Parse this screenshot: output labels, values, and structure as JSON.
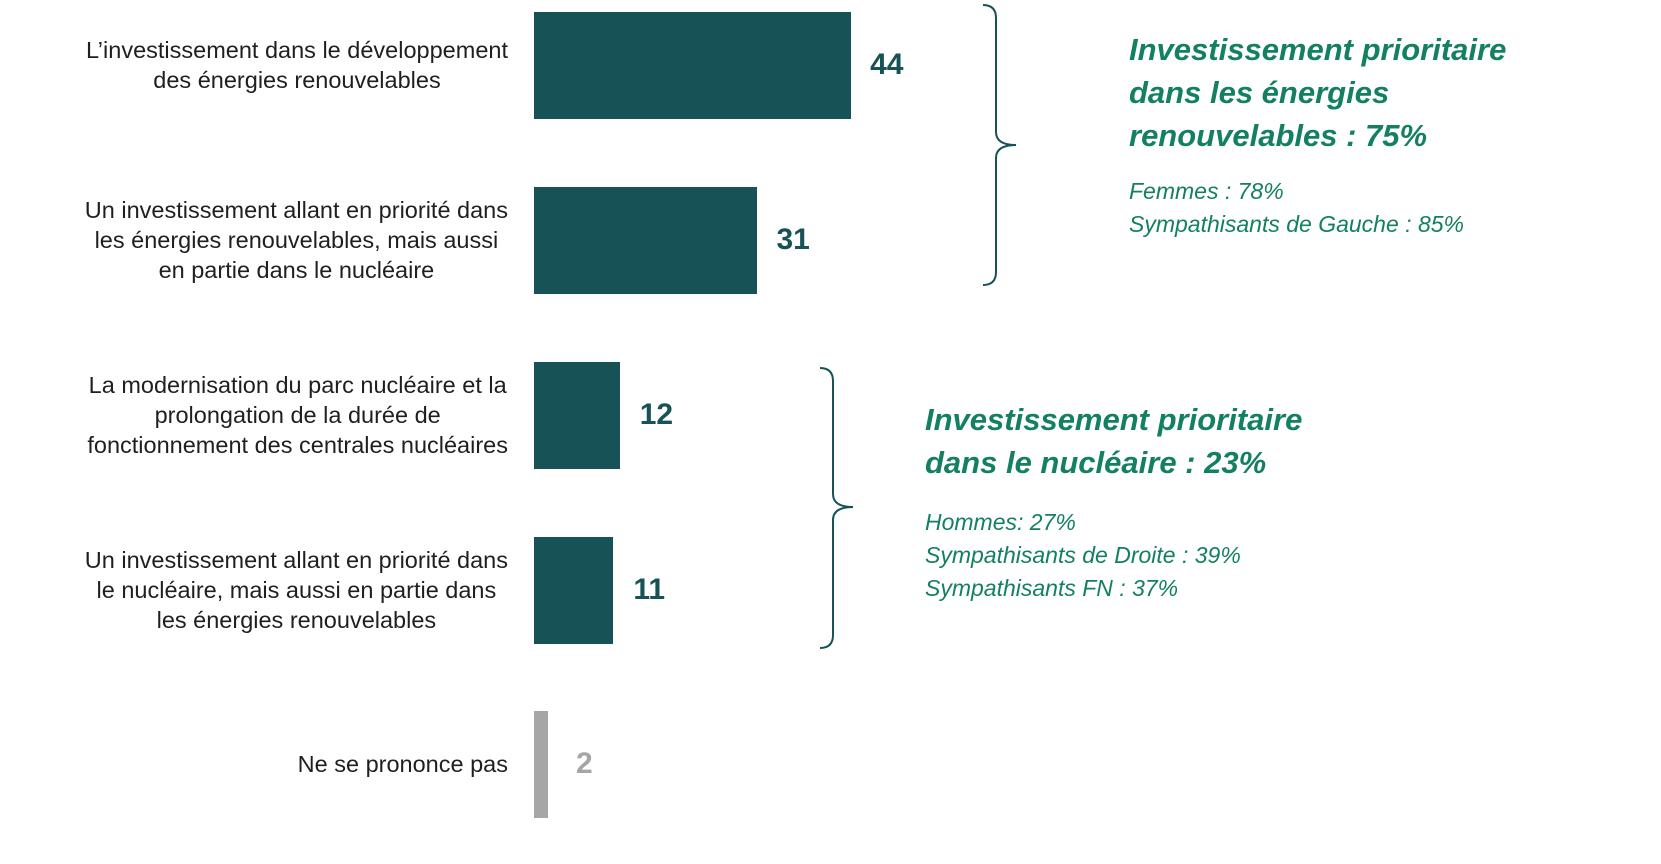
{
  "chart_data": {
    "type": "bar",
    "orientation": "horizontal",
    "categories": [
      [
        "L’investissement dans le développement",
        "des énergies renouvelables"
      ],
      [
        "Un investissement allant en priorité dans",
        "les énergies renouvelables, mais aussi",
        "en partie dans le nucléaire"
      ],
      [
        "La modernisation du parc nucléaire et la",
        "prolongation de la durée de",
        "fonctionnement des centrales nucléaires"
      ],
      [
        "Un investissement allant en priorité dans",
        "le nucléaire, mais aussi en partie dans",
        "les énergies renouvelables"
      ],
      [
        "Ne se prononce pas"
      ]
    ],
    "values": [
      44,
      31,
      12,
      11,
      2
    ],
    "colors": [
      "#175257",
      "#175257",
      "#175257",
      "#175257",
      "#a6a6a6"
    ],
    "label_colors": [
      "#175257",
      "#175257",
      "#175257",
      "#175257",
      "#a6a6a6"
    ],
    "annotations": [
      {
        "title": [
          "Investissement prioritaire",
          "dans les énergies",
          "renouvelables : 75%"
        ],
        "details": [
          "Femmes  : 78%",
          "Sympathisants de Gauche  : 85%"
        ]
      },
      {
        "title": [
          "Investissement prioritaire",
          "dans le nucléaire : 23%"
        ],
        "details": [
          "Hommes: 27%",
          "Sympathisants de Droite  : 39%",
          "Sympathisants FN : 37%"
        ]
      }
    ],
    "annotation_color": "#138061"
  }
}
